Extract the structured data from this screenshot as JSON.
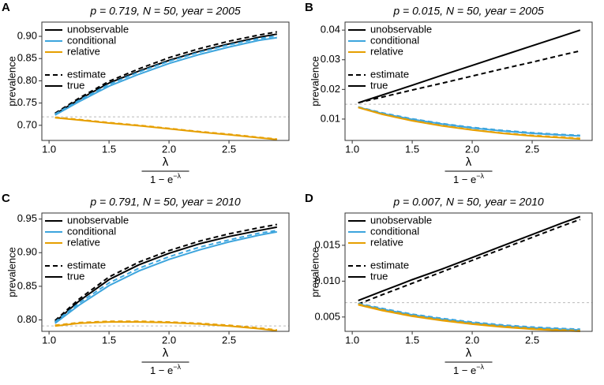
{
  "chart_data": [
    {
      "type": "line",
      "panel": "A",
      "title": "p = 0.719, N = 50, year = 2005",
      "ylabel": "prevalence",
      "xlabel_numerator": "λ",
      "xlabel_denominator": "1 − e",
      "xlabel_exponent": "−λ",
      "x": [
        1.05,
        1.25,
        1.5,
        1.75,
        2.0,
        2.25,
        2.5,
        2.75,
        2.9
      ],
      "xlim": [
        0.94,
        3.0
      ],
      "xticks": [
        {
          "value": 1,
          "label": "1.0"
        },
        1.5,
        {
          "value": 2,
          "label": "2.0"
        },
        2.5
      ],
      "ylim": [
        0.666,
        0.932
      ],
      "yticks": [
        {
          "value": 0.7,
          "label": "0.70"
        },
        0.75,
        {
          "value": 0.8,
          "label": "0.80"
        },
        0.85,
        {
          "value": 0.9,
          "label": "0.90"
        }
      ],
      "reference_line": 0.719,
      "line_styles": [
        {
          "name": "estimate",
          "dash": "6,4"
        },
        {
          "name": "true",
          "dash": "none"
        }
      ],
      "series": [
        {
          "name": "unobservable",
          "color": "#000000",
          "estimate": [
            0.727,
            0.761,
            0.799,
            0.827,
            0.852,
            0.872,
            0.889,
            0.903,
            0.91
          ],
          "true": [
            0.725,
            0.758,
            0.795,
            0.822,
            0.846,
            0.866,
            0.883,
            0.898,
            0.905
          ]
        },
        {
          "name": "conditional",
          "color": "#3DA5DD",
          "estimate": [
            0.725,
            0.756,
            0.792,
            0.82,
            0.844,
            0.864,
            0.881,
            0.895,
            0.901
          ],
          "true": [
            0.723,
            0.753,
            0.788,
            0.815,
            0.839,
            0.859,
            0.876,
            0.891,
            0.897
          ]
        },
        {
          "name": "relative",
          "color": "#E69F00",
          "estimate": [
            0.718,
            0.713,
            0.706,
            0.7,
            0.693,
            0.686,
            0.68,
            0.673,
            0.669
          ],
          "true": [
            0.717,
            0.712,
            0.705,
            0.699,
            0.692,
            0.685,
            0.679,
            0.672,
            0.668
          ]
        }
      ]
    },
    {
      "type": "line",
      "panel": "B",
      "title": "p = 0.015, N = 50, year = 2005",
      "ylabel": "prevalence",
      "xlabel_numerator": "λ",
      "xlabel_denominator": "1 − e",
      "xlabel_exponent": "−λ",
      "x": [
        1.05,
        1.25,
        1.5,
        1.75,
        2.0,
        2.25,
        2.5,
        2.75,
        2.9
      ],
      "xlim": [
        0.94,
        3.0
      ],
      "xticks": [
        {
          "value": 1,
          "label": "1.0"
        },
        1.5,
        {
          "value": 2,
          "label": "2.0"
        },
        2.5
      ],
      "ylim": [
        0.0028,
        0.0427
      ],
      "yticks": [
        0.01,
        0.02,
        0.03,
        0.04
      ],
      "reference_line": 0.015,
      "line_styles": [
        {
          "name": "estimate",
          "dash": "6,4"
        },
        {
          "name": "true",
          "dash": "none"
        }
      ],
      "series": [
        {
          "name": "unobservable",
          "color": "#000000",
          "estimate": [
            0.0155,
            0.0174,
            0.0198,
            0.0221,
            0.0245,
            0.0269,
            0.0292,
            0.0316,
            0.033
          ],
          "true": [
            0.0155,
            0.0181,
            0.0214,
            0.0248,
            0.0281,
            0.0314,
            0.0347,
            0.038,
            0.04
          ]
        },
        {
          "name": "conditional",
          "color": "#3DA5DD",
          "estimate": [
            0.0141,
            0.0121,
            0.0101,
            0.0085,
            0.0072,
            0.0062,
            0.0054,
            0.0048,
            0.0045
          ],
          "true": [
            0.014,
            0.0119,
            0.0099,
            0.0083,
            0.007,
            0.006,
            0.0052,
            0.0046,
            0.0043
          ]
        },
        {
          "name": "relative",
          "color": "#E69F00",
          "estimate": [
            0.014,
            0.0117,
            0.0095,
            0.0078,
            0.0064,
            0.0053,
            0.0045,
            0.0039,
            0.0035
          ],
          "true": [
            0.0139,
            0.0116,
            0.0094,
            0.0077,
            0.0063,
            0.0052,
            0.0043,
            0.0037,
            0.0033
          ]
        }
      ]
    },
    {
      "type": "line",
      "panel": "C",
      "title": "p = 0.791, N = 50, year = 2010",
      "ylabel": "prevalence",
      "xlabel_numerator": "λ",
      "xlabel_denominator": "1 − e",
      "xlabel_exponent": "−λ",
      "x": [
        1.05,
        1.25,
        1.5,
        1.75,
        2.0,
        2.25,
        2.5,
        2.75,
        2.9
      ],
      "xlim": [
        0.94,
        3.0
      ],
      "xticks": [
        {
          "value": 1,
          "label": "1.0"
        },
        1.5,
        {
          "value": 2,
          "label": "2.0"
        },
        2.5
      ],
      "ylim": [
        0.783,
        0.959
      ],
      "yticks": [
        {
          "value": 0.8,
          "label": "0.80"
        },
        0.85,
        {
          "value": 0.9,
          "label": "0.90"
        },
        0.95
      ],
      "reference_line": 0.791,
      "line_styles": [
        {
          "name": "estimate",
          "dash": "6,4"
        },
        {
          "name": "true",
          "dash": "none"
        }
      ],
      "series": [
        {
          "name": "unobservable",
          "color": "#000000",
          "estimate": [
            0.799,
            0.831,
            0.864,
            0.886,
            0.903,
            0.917,
            0.928,
            0.937,
            0.942
          ],
          "true": [
            0.797,
            0.828,
            0.86,
            0.882,
            0.899,
            0.913,
            0.924,
            0.933,
            0.938
          ]
        },
        {
          "name": "conditional",
          "color": "#3DA5DD",
          "estimate": [
            0.797,
            0.825,
            0.855,
            0.877,
            0.894,
            0.908,
            0.919,
            0.929,
            0.933
          ],
          "true": [
            0.795,
            0.822,
            0.851,
            0.873,
            0.89,
            0.904,
            0.916,
            0.926,
            0.931
          ]
        },
        {
          "name": "relative",
          "color": "#E69F00",
          "estimate": [
            0.792,
            0.796,
            0.798,
            0.798,
            0.797,
            0.795,
            0.792,
            0.788,
            0.785
          ],
          "true": [
            0.791,
            0.795,
            0.797,
            0.797,
            0.796,
            0.794,
            0.791,
            0.787,
            0.784
          ]
        }
      ]
    },
    {
      "type": "line",
      "panel": "D",
      "title": "p = 0.007, N = 50, year = 2010",
      "ylabel": "prevalence",
      "xlabel_numerator": "λ",
      "xlabel_denominator": "1 − e",
      "xlabel_exponent": "−λ",
      "x": [
        1.05,
        1.25,
        1.5,
        1.75,
        2.0,
        2.25,
        2.5,
        2.75,
        2.9
      ],
      "xlim": [
        0.94,
        3.0
      ],
      "xticks": [
        {
          "value": 1,
          "label": "1.0"
        },
        1.5,
        {
          "value": 2,
          "label": "2.0"
        },
        2.5
      ],
      "ylim": [
        0.003,
        0.0195
      ],
      "yticks": [
        0.005,
        {
          "value": 0.01,
          "label": "0.010"
        },
        0.015
      ],
      "reference_line": 0.007,
      "line_styles": [
        {
          "name": "estimate",
          "dash": "6,4"
        },
        {
          "name": "true",
          "dash": "none"
        }
      ],
      "series": [
        {
          "name": "unobservable",
          "color": "#000000",
          "estimate": [
            0.0068,
            0.0081,
            0.0097,
            0.0113,
            0.0129,
            0.0145,
            0.0161,
            0.0177,
            0.0186
          ],
          "true": [
            0.0073,
            0.0086,
            0.0102,
            0.0117,
            0.0133,
            0.0149,
            0.0165,
            0.0181,
            0.019
          ]
        },
        {
          "name": "conditional",
          "color": "#3DA5DD",
          "estimate": [
            0.0069,
            0.0062,
            0.0054,
            0.0048,
            0.0043,
            0.0039,
            0.0036,
            0.0034,
            0.0033
          ],
          "true": [
            0.0068,
            0.0061,
            0.0053,
            0.0047,
            0.0042,
            0.0038,
            0.0035,
            0.0033,
            0.0032
          ]
        },
        {
          "name": "relative",
          "color": "#E69F00",
          "estimate": [
            0.0068,
            0.006,
            0.0052,
            0.0046,
            0.0041,
            0.0037,
            0.0034,
            0.0032,
            0.0031
          ],
          "true": [
            0.0067,
            0.0059,
            0.0051,
            0.0045,
            0.004,
            0.0036,
            0.0033,
            0.0031,
            0.003
          ]
        }
      ]
    }
  ]
}
